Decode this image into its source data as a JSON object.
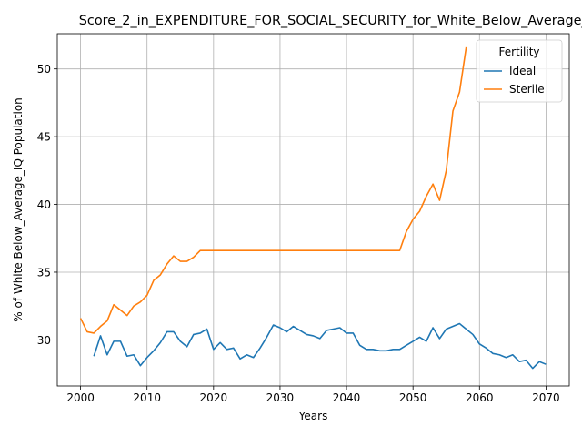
{
  "chart_data": {
    "type": "line",
    "title": "Score_2_in_EXPENDITURE_FOR_SOCIAL_SECURITY_for_White_Below_Average_IQ",
    "xlabel": "Years",
    "ylabel": "% of White Below_Average_IQ Population",
    "xlim": [
      1996.5,
      2073.5
    ],
    "ylim": [
      26.6,
      52.6
    ],
    "xticks": [
      2000,
      2010,
      2020,
      2030,
      2040,
      2050,
      2060,
      2070
    ],
    "yticks": [
      30,
      35,
      40,
      45,
      50
    ],
    "grid": true,
    "legend": {
      "title": "Fertility",
      "placement": "top-right"
    },
    "series": [
      {
        "name": "Ideal",
        "color": "#1f77b4",
        "x": [
          2002,
          2003,
          2004,
          2005,
          2006,
          2007,
          2008,
          2009,
          2010,
          2011,
          2012,
          2013,
          2014,
          2015,
          2016,
          2017,
          2018,
          2019,
          2020,
          2021,
          2022,
          2023,
          2024,
          2025,
          2026,
          2027,
          2028,
          2029,
          2030,
          2031,
          2032,
          2033,
          2034,
          2035,
          2036,
          2037,
          2038,
          2039,
          2040,
          2041,
          2042,
          2043,
          2044,
          2045,
          2046,
          2047,
          2048,
          2049,
          2050,
          2051,
          2052,
          2053,
          2054,
          2055,
          2056,
          2057,
          2058,
          2059,
          2060,
          2061,
          2062,
          2063,
          2064,
          2065,
          2066,
          2067,
          2068,
          2069,
          2070
        ],
        "y": [
          28.8,
          30.3,
          28.9,
          29.9,
          29.9,
          28.8,
          28.9,
          28.1,
          28.7,
          29.2,
          29.8,
          30.6,
          30.6,
          29.9,
          29.5,
          30.4,
          30.5,
          30.8,
          29.3,
          29.8,
          29.3,
          29.4,
          28.6,
          28.9,
          28.7,
          29.4,
          30.2,
          31.1,
          30.9,
          30.6,
          31.0,
          30.7,
          30.4,
          30.3,
          30.1,
          30.7,
          30.8,
          30.9,
          30.5,
          30.5,
          29.6,
          29.3,
          29.3,
          29.2,
          29.2,
          29.3,
          29.3,
          29.6,
          29.9,
          30.2,
          29.9,
          30.9,
          30.1,
          30.8,
          31.0,
          31.2,
          30.8,
          30.4,
          29.7,
          29.4,
          29.0,
          28.9,
          28.7,
          28.9,
          28.4,
          28.5,
          27.9,
          28.4,
          28.2
        ]
      },
      {
        "name": "Sterile",
        "color": "#ff7f0e",
        "x": [
          2000,
          2001,
          2002,
          2003,
          2004,
          2005,
          2006,
          2007,
          2008,
          2009,
          2010,
          2011,
          2012,
          2013,
          2014,
          2015,
          2016,
          2017,
          2018,
          2019,
          2020,
          2021,
          2022,
          2023,
          2024,
          2025,
          2026,
          2027,
          2028,
          2029,
          2030,
          2031,
          2032,
          2033,
          2034,
          2035,
          2036,
          2037,
          2038,
          2039,
          2040,
          2041,
          2042,
          2043,
          2044,
          2045,
          2046,
          2047,
          2048,
          2049,
          2050,
          2051,
          2052,
          2053,
          2054,
          2055,
          2056,
          2057,
          2058
        ],
        "y": [
          31.6,
          30.6,
          30.5,
          31.0,
          31.4,
          32.6,
          32.2,
          31.8,
          32.5,
          32.8,
          33.3,
          34.4,
          34.8,
          35.6,
          36.2,
          35.8,
          35.8,
          36.1,
          36.6,
          36.6,
          36.6,
          36.6,
          36.6,
          36.6,
          36.6,
          36.6,
          36.6,
          36.6,
          36.6,
          36.6,
          36.6,
          36.6,
          36.6,
          36.6,
          36.6,
          36.6,
          36.6,
          36.6,
          36.6,
          36.6,
          36.6,
          36.6,
          36.6,
          36.6,
          36.6,
          36.6,
          36.6,
          36.6,
          36.6,
          38.0,
          38.9,
          39.5,
          40.6,
          41.5,
          40.3,
          42.5,
          46.9,
          48.3,
          51.6
        ]
      }
    ]
  }
}
